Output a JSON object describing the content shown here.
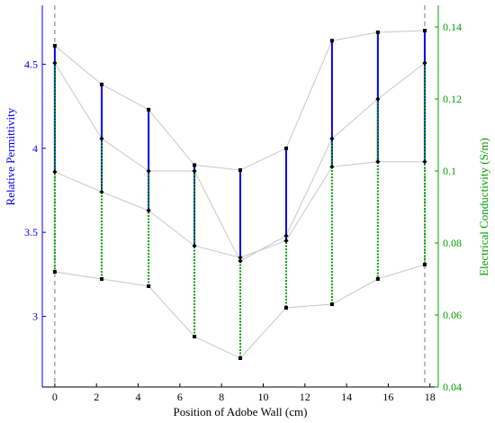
{
  "chart_data": {
    "type": "line",
    "xlabel": "Position of Adobe Wall (cm)",
    "ylabel_left": "Relative Permittivity",
    "ylabel_right": "Electrical Conductivity (S/m)",
    "xlim": [
      -0.6,
      18.4
    ],
    "xticks": [
      0,
      2,
      4,
      6,
      8,
      10,
      12,
      14,
      16,
      18
    ],
    "ylim_left": [
      2.58,
      4.85
    ],
    "yticks_left": [
      3,
      3.5,
      4,
      4.5
    ],
    "ylim_right": [
      0.04,
      0.146
    ],
    "yticks_right": [
      0.04,
      0.06,
      0.08,
      0.1,
      0.12,
      0.14
    ],
    "colors": {
      "permittivity": "#0000ee",
      "conductivity": "#00a000",
      "envelope": "#c8c8c8",
      "markers": "#000000",
      "left_axis": "#0000ff",
      "right_axis": "#00a000"
    },
    "series": [
      {
        "axis": "left",
        "x": [
          0,
          2.25,
          4.5,
          6.7,
          8.9,
          11.1,
          13.3,
          15.5,
          17.75
        ],
        "upper": [
          4.61,
          4.38,
          4.23,
          3.9,
          3.87,
          4.0,
          4.64,
          4.69,
          4.7
        ],
        "lower": [
          3.86,
          3.74,
          3.63,
          3.42,
          3.35,
          3.45,
          3.89,
          3.92,
          3.92
        ]
      },
      {
        "axis": "right",
        "x": [
          0,
          2.25,
          4.5,
          6.7,
          8.9,
          11.1,
          13.3,
          15.5,
          17.75
        ],
        "upper": [
          0.13,
          0.109,
          0.1,
          0.1,
          0.075,
          0.082,
          0.109,
          0.12,
          0.13
        ],
        "lower": [
          0.072,
          0.07,
          0.068,
          0.054,
          0.048,
          0.062,
          0.063,
          0.07,
          0.074
        ]
      }
    ],
    "vlines": [
      0,
      17.75
    ],
    "grid": false
  }
}
